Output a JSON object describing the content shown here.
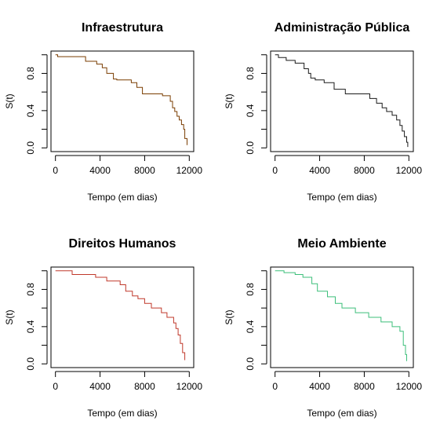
{
  "chart_data": [
    {
      "type": "line",
      "step": true,
      "title": "Infraestrutura",
      "xlabel": "Tempo (em dias)",
      "ylabel": "S(t)",
      "xlim": [
        -400,
        12400
      ],
      "ylim": [
        -0.04,
        1.04
      ],
      "xticks": [
        0,
        4000,
        8000,
        12000
      ],
      "xtick_labels": [
        "0",
        "4000",
        "8000",
        "12000"
      ],
      "yticks": [
        0.0,
        0.2,
        0.4,
        0.6,
        0.8,
        1.0
      ],
      "ytick_labels": [
        "0.0",
        "",
        "0.4",
        "",
        "0.8",
        ""
      ],
      "grid": false,
      "color": "#7a3d00",
      "x": [
        0,
        200,
        2700,
        3700,
        4200,
        4600,
        5200,
        5500,
        6800,
        7300,
        7800,
        9600,
        10300,
        10500,
        10700,
        10900,
        11100,
        11300,
        11500,
        11600,
        11800
      ],
      "y": [
        1.0,
        0.98,
        0.93,
        0.9,
        0.86,
        0.8,
        0.74,
        0.73,
        0.7,
        0.65,
        0.58,
        0.56,
        0.5,
        0.43,
        0.39,
        0.34,
        0.3,
        0.25,
        0.2,
        0.1,
        0.03
      ]
    },
    {
      "type": "line",
      "step": true,
      "title": "Administração Pública",
      "xlabel": "Tempo (em dias)",
      "ylabel": "S(t)",
      "xlim": [
        -400,
        12400
      ],
      "ylim": [
        -0.04,
        1.04
      ],
      "xticks": [
        0,
        4000,
        8000,
        12000
      ],
      "xtick_labels": [
        "0",
        "4000",
        "8000",
        "12000"
      ],
      "yticks": [
        0.0,
        0.2,
        0.4,
        0.6,
        0.8,
        1.0
      ],
      "ytick_labels": [
        "0.0",
        "",
        "0.4",
        "",
        "0.8",
        ""
      ],
      "grid": false,
      "color": "#1a1a1a",
      "x": [
        0,
        300,
        1000,
        1800,
        2600,
        3000,
        3200,
        3600,
        4400,
        5300,
        6300,
        8500,
        9100,
        9600,
        10000,
        10500,
        10900,
        11200,
        11400,
        11600,
        11800,
        11900
      ],
      "y": [
        1.0,
        0.97,
        0.94,
        0.91,
        0.85,
        0.8,
        0.75,
        0.73,
        0.7,
        0.63,
        0.58,
        0.53,
        0.48,
        0.43,
        0.39,
        0.35,
        0.3,
        0.24,
        0.18,
        0.12,
        0.06,
        0.01
      ]
    },
    {
      "type": "line",
      "step": true,
      "title": "Direitos Humanos",
      "xlabel": "Tempo (em dias)",
      "ylabel": "S(t)",
      "xlim": [
        -400,
        12400
      ],
      "ylim": [
        -0.04,
        1.04
      ],
      "xticks": [
        0,
        4000,
        8000,
        12000
      ],
      "xtick_labels": [
        "0",
        "4000",
        "8000",
        "12000"
      ],
      "yticks": [
        0.0,
        0.2,
        0.4,
        0.6,
        0.8,
        1.0
      ],
      "ytick_labels": [
        "0.0",
        "",
        "0.4",
        "",
        "0.8",
        ""
      ],
      "grid": false,
      "color": "#c0392b",
      "x": [
        0,
        1500,
        3600,
        4600,
        5800,
        6300,
        6900,
        7400,
        8000,
        8600,
        9500,
        10000,
        10600,
        10800,
        11000,
        11200,
        11400,
        11600
      ],
      "y": [
        1.0,
        0.96,
        0.93,
        0.89,
        0.85,
        0.78,
        0.73,
        0.7,
        0.65,
        0.6,
        0.55,
        0.5,
        0.44,
        0.38,
        0.31,
        0.22,
        0.12,
        0.04
      ]
    },
    {
      "type": "line",
      "step": true,
      "title": "Meio Ambiente",
      "xlabel": "Tempo (em dias)",
      "ylabel": "S(t)",
      "xlim": [
        -400,
        12400
      ],
      "ylim": [
        -0.04,
        1.04
      ],
      "xticks": [
        0,
        4000,
        8000,
        12000
      ],
      "xtick_labels": [
        "0",
        "4000",
        "8000",
        "12000"
      ],
      "yticks": [
        0.0,
        0.2,
        0.4,
        0.6,
        0.8,
        1.0
      ],
      "ytick_labels": [
        "0.0",
        "",
        "0.4",
        "",
        "0.8",
        ""
      ],
      "grid": false,
      "color": "#3cbf7a",
      "x": [
        0,
        800,
        1800,
        2500,
        3300,
        3800,
        4700,
        5400,
        6000,
        7200,
        8400,
        9500,
        10500,
        11200,
        11500,
        11700,
        11800
      ],
      "y": [
        1.0,
        0.98,
        0.96,
        0.93,
        0.86,
        0.78,
        0.72,
        0.65,
        0.6,
        0.55,
        0.5,
        0.45,
        0.4,
        0.35,
        0.2,
        0.1,
        0.03
      ]
    }
  ]
}
